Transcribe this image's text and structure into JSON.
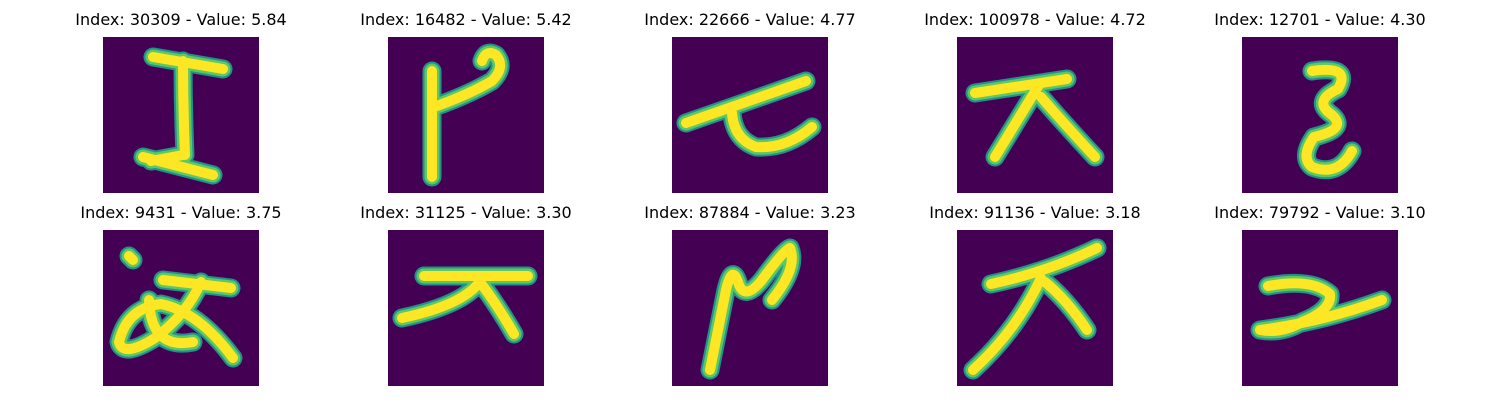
{
  "colors": {
    "background": "#ffffff",
    "image_background": "#440154",
    "stroke_outer": "#21918c",
    "stroke_mid": "#5ec962",
    "stroke_inner": "#fde725"
  },
  "panels": [
    {
      "title": "Index: 30309 - Value: 5.84",
      "index": 30309,
      "value": 5.84
    },
    {
      "title": "Index: 16482 - Value: 5.42",
      "index": 16482,
      "value": 5.42
    },
    {
      "title": "Index: 22666 - Value: 4.77",
      "index": 22666,
      "value": 4.77
    },
    {
      "title": "Index: 100978 - Value: 4.72",
      "index": 100978,
      "value": 4.72
    },
    {
      "title": "Index: 12701 - Value: 4.30",
      "index": 12701,
      "value": 4.3
    },
    {
      "title": "Index: 9431 - Value: 3.75",
      "index": 9431,
      "value": 3.75
    },
    {
      "title": "Index: 31125 - Value: 3.30",
      "index": 31125,
      "value": 3.3
    },
    {
      "title": "Index: 87884 - Value: 3.23",
      "index": 87884,
      "value": 3.23
    },
    {
      "title": "Index: 91136 - Value: 3.18",
      "index": 91136,
      "value": 3.18
    },
    {
      "title": "Index: 79792 - Value: 3.10",
      "index": 79792,
      "value": 3.1
    }
  ]
}
